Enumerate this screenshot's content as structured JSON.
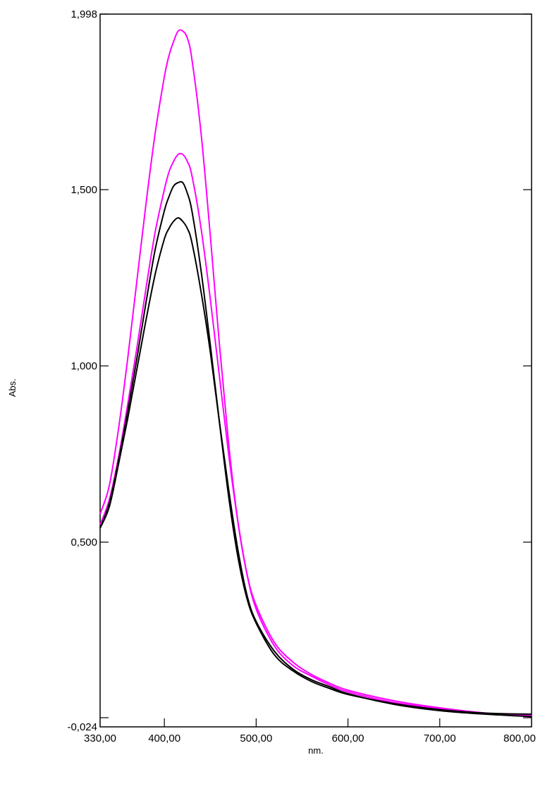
{
  "chart_data": {
    "type": "line",
    "xlabel": "nm.",
    "ylabel": "Abs.",
    "xlim": [
      330,
      800
    ],
    "ylim": [
      -0.024,
      1.998
    ],
    "x_ticks": [
      330,
      400,
      500,
      600,
      700,
      800
    ],
    "x_tick_labels": [
      "330,00",
      "400,00",
      "500,00",
      "600,00",
      "700,00",
      "800,00"
    ],
    "y_ticks": [
      -0.024,
      0.5,
      1.0,
      1.5,
      1.998
    ],
    "y_tick_labels": [
      "-0,024",
      "0,500",
      "1,000",
      "1,500",
      "1,998"
    ],
    "grid": false,
    "x": [
      330,
      340,
      350,
      360,
      370,
      380,
      390,
      400,
      405,
      410,
      415,
      420,
      425,
      430,
      440,
      450,
      460,
      470,
      480,
      490,
      500,
      520,
      540,
      560,
      580,
      600,
      650,
      700,
      750,
      800
    ],
    "series": [
      {
        "color": "#ff00ff",
        "values": [
          0.58,
          0.66,
          0.82,
          1.02,
          1.24,
          1.46,
          1.66,
          1.82,
          1.88,
          1.92,
          1.95,
          1.95,
          1.93,
          1.87,
          1.66,
          1.37,
          1.06,
          0.78,
          0.56,
          0.41,
          0.32,
          0.215,
          0.16,
          0.125,
          0.1,
          0.08,
          0.05,
          0.03,
          0.015,
          0.005
        ]
      },
      {
        "color": "#ff00ff",
        "values": [
          0.55,
          0.62,
          0.74,
          0.89,
          1.05,
          1.22,
          1.38,
          1.5,
          1.55,
          1.58,
          1.6,
          1.6,
          1.58,
          1.54,
          1.39,
          1.19,
          0.97,
          0.75,
          0.56,
          0.41,
          0.31,
          0.205,
          0.15,
          0.12,
          0.095,
          0.075,
          0.045,
          0.028,
          0.015,
          0.008
        ]
      },
      {
        "color": "#000000",
        "values": [
          0.54,
          0.61,
          0.73,
          0.87,
          1.02,
          1.18,
          1.33,
          1.44,
          1.48,
          1.51,
          1.52,
          1.52,
          1.49,
          1.44,
          1.27,
          1.06,
          0.84,
          0.63,
          0.46,
          0.34,
          0.27,
          0.18,
          0.135,
          0.105,
          0.085,
          0.068,
          0.042,
          0.025,
          0.015,
          0.012
        ]
      },
      {
        "color": "#000000",
        "values": [
          0.54,
          0.6,
          0.72,
          0.85,
          0.99,
          1.13,
          1.26,
          1.36,
          1.39,
          1.41,
          1.42,
          1.41,
          1.39,
          1.35,
          1.21,
          1.04,
          0.84,
          0.65,
          0.48,
          0.35,
          0.275,
          0.19,
          0.14,
          0.11,
          0.09,
          0.07,
          0.04,
          0.022,
          0.012,
          0.005
        ]
      }
    ]
  }
}
